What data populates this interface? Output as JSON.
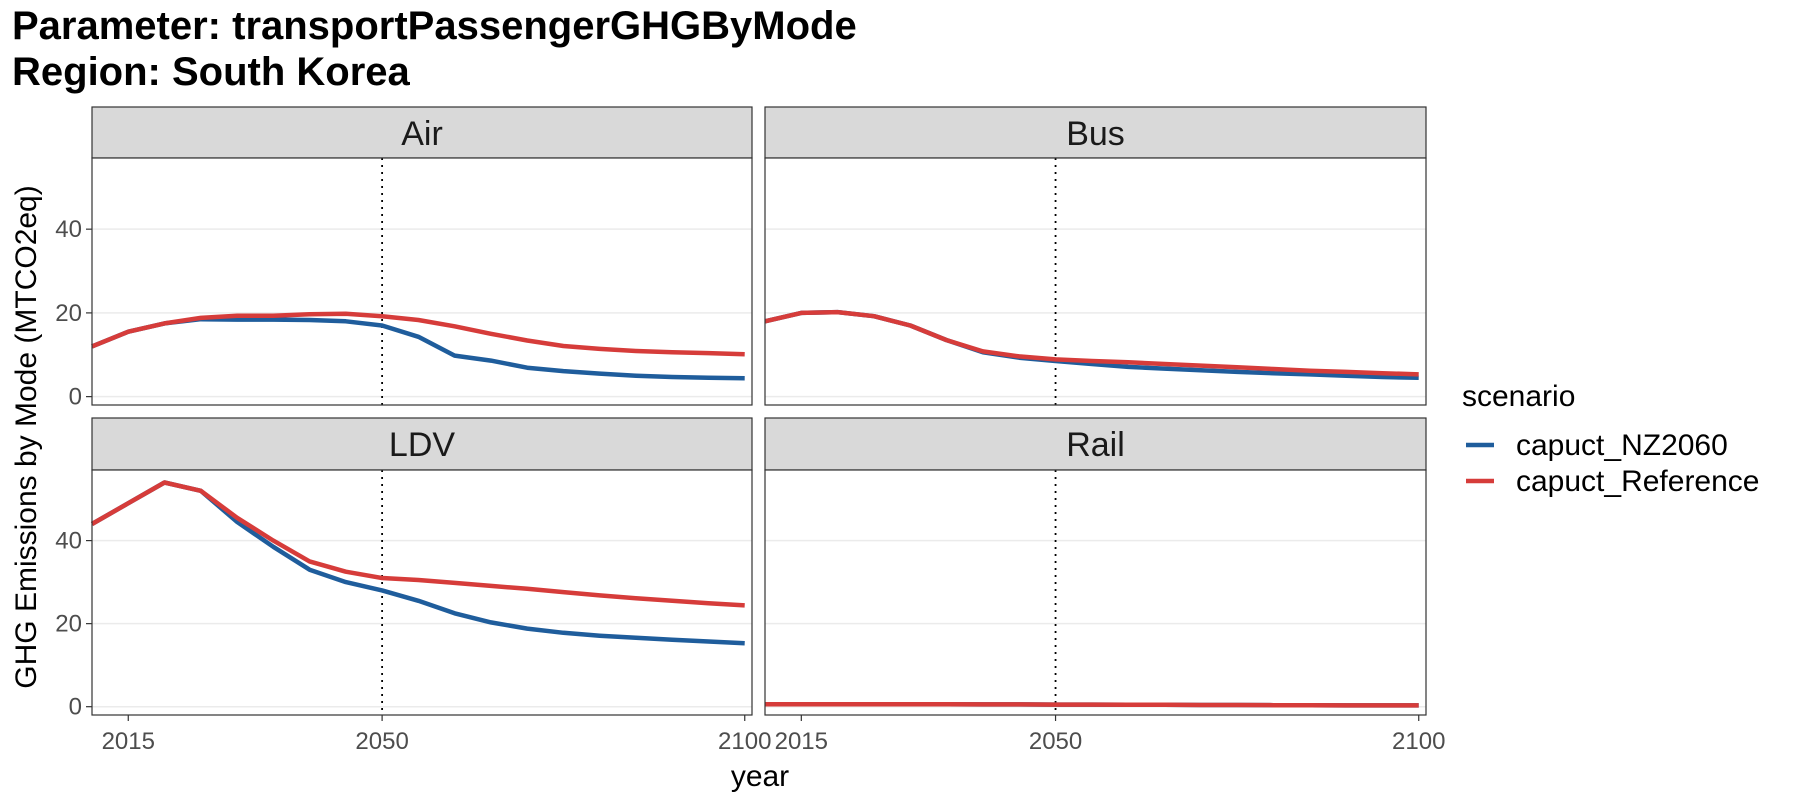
{
  "title": {
    "line1": "Parameter: transportPassengerGHGByMode",
    "line2": "Region: South Korea"
  },
  "chart_data": {
    "type": "line",
    "facets": [
      "Air",
      "Bus",
      "LDV",
      "Rail"
    ],
    "xlabel": "year",
    "ylabel": "GHG Emissions by Mode (MTCO2eq)",
    "xlim": [
      2010,
      2101
    ],
    "ylim": [
      -2,
      57
    ],
    "x_ticks": [
      2015,
      2050,
      2100
    ],
    "y_ticks": [
      0,
      20,
      40
    ],
    "vline": 2050,
    "grid": true,
    "legend": {
      "title": "scenario",
      "position": "right",
      "entries": [
        "capuct_NZ2060",
        "capuct_Reference"
      ]
    },
    "colors": {
      "capuct_NZ2060": "#1f5d9c",
      "capuct_Reference": "#d63c3a"
    },
    "x": [
      2010,
      2015,
      2020,
      2025,
      2030,
      2035,
      2040,
      2045,
      2050,
      2055,
      2060,
      2065,
      2070,
      2075,
      2080,
      2085,
      2090,
      2095,
      2100
    ],
    "panels": [
      {
        "facet": "Air",
        "series": [
          {
            "name": "capuct_NZ2060",
            "values": [
              12,
              15.5,
              17.5,
              18.5,
              18.4,
              18.4,
              18.3,
              18.0,
              17.0,
              14.3,
              9.8,
              8.6,
              6.9,
              6.1,
              5.5,
              5.0,
              4.7,
              4.5,
              4.4
            ]
          },
          {
            "name": "capuct_Reference",
            "values": [
              12,
              15.5,
              17.5,
              18.8,
              19.3,
              19.3,
              19.7,
              19.8,
              19.2,
              18.3,
              16.8,
              15.0,
              13.4,
              12.1,
              11.4,
              10.9,
              10.6,
              10.4,
              10.1
            ]
          }
        ]
      },
      {
        "facet": "Bus",
        "series": [
          {
            "name": "capuct_NZ2060",
            "values": [
              18,
              20.0,
              20.2,
              19.2,
              17.0,
              13.5,
              10.6,
              9.3,
              8.5,
              7.8,
              7.1,
              6.7,
              6.3,
              5.9,
              5.6,
              5.3,
              5.0,
              4.7,
              4.5
            ]
          },
          {
            "name": "capuct_Reference",
            "values": [
              18,
              20.0,
              20.2,
              19.2,
              17.0,
              13.5,
              10.8,
              9.6,
              8.9,
              8.5,
              8.2,
              7.8,
              7.4,
              7.0,
              6.6,
              6.2,
              5.9,
              5.6,
              5.3
            ]
          }
        ]
      },
      {
        "facet": "LDV",
        "series": [
          {
            "name": "capuct_NZ2060",
            "values": [
              44,
              49,
              54,
              52,
              44.5,
              38.5,
              33,
              30,
              28,
              25.5,
              22.5,
              20.3,
              18.8,
              17.8,
              17.1,
              16.6,
              16.1,
              15.7,
              15.3
            ]
          },
          {
            "name": "capuct_Reference",
            "values": [
              44,
              49,
              54,
              52,
              45.5,
              40,
              35,
              32.5,
              31,
              30.5,
              29.8,
              29.1,
              28.4,
              27.6,
              26.8,
              26.1,
              25.5,
              24.9,
              24.4
            ]
          }
        ]
      },
      {
        "facet": "Rail",
        "series": [
          {
            "name": "capuct_NZ2060",
            "values": [
              0.6,
              0.6,
              0.6,
              0.6,
              0.6,
              0.6,
              0.55,
              0.55,
              0.5,
              0.5,
              0.45,
              0.45,
              0.4,
              0.4,
              0.35,
              0.35,
              0.3,
              0.3,
              0.3
            ]
          },
          {
            "name": "capuct_Reference",
            "values": [
              0.6,
              0.6,
              0.6,
              0.6,
              0.6,
              0.6,
              0.55,
              0.55,
              0.5,
              0.5,
              0.45,
              0.45,
              0.4,
              0.4,
              0.35,
              0.35,
              0.3,
              0.3,
              0.3
            ]
          }
        ]
      }
    ]
  }
}
